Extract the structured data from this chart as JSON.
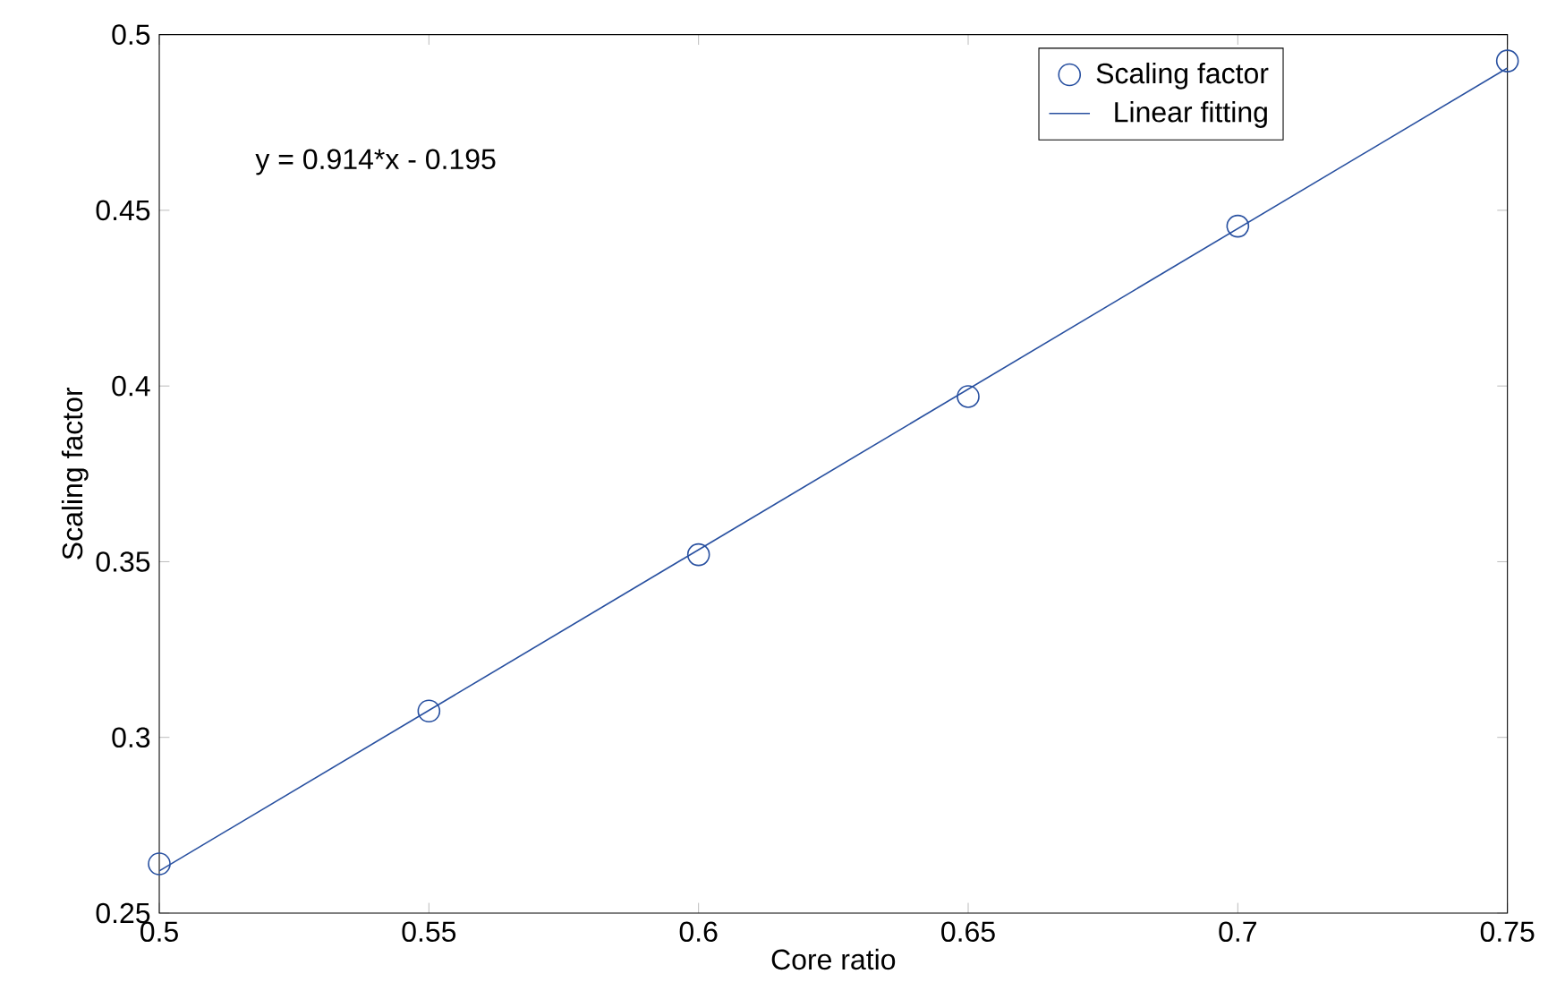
{
  "chart_data": {
    "type": "scatter",
    "xlabel": "Core ratio",
    "ylabel": "Scaling factor",
    "annotations": [
      "y = 0.914*x - 0.195"
    ],
    "series": [
      {
        "name": "Scaling factor",
        "marker": "circle",
        "color": "#2850a0",
        "x": [
          0.5,
          0.55,
          0.6,
          0.65,
          0.7,
          0.75
        ],
        "values": [
          0.264,
          0.3075,
          0.352,
          0.397,
          0.4455,
          0.4925
        ]
      },
      {
        "name": "Linear fitting",
        "type": "line",
        "marker": "none",
        "color": "#2850a0",
        "x": [
          0.5,
          0.75
        ],
        "values": [
          0.262,
          0.4905
        ]
      }
    ],
    "xlim": [
      0.5,
      0.75
    ],
    "ylim": [
      0.25,
      0.5
    ],
    "xticks": [
      0.5,
      0.55,
      0.6,
      0.65,
      0.7,
      0.75
    ],
    "yticks": [
      0.25,
      0.3,
      0.35,
      0.4,
      0.45,
      0.5
    ],
    "grid": false,
    "legend": "top right"
  }
}
